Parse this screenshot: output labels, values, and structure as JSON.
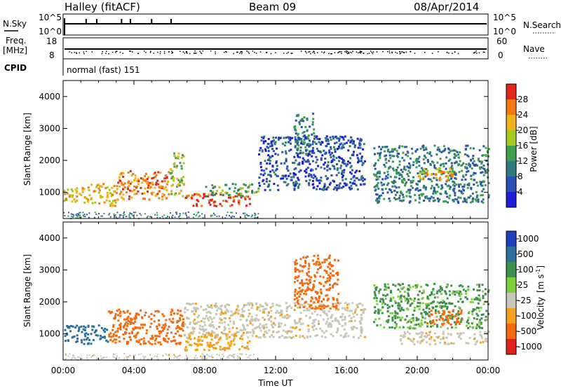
{
  "header": {
    "station": "Halley (fitACF)",
    "beam": "Beam 09",
    "date": "08/Apr/2014"
  },
  "top_panels": {
    "nsky_label": "N.Sky",
    "nsky_ticks": [
      "10^5",
      "10^0"
    ],
    "nsearch_label": "N.Search",
    "nsearch_ticks": [
      "10^5",
      "10^0"
    ],
    "freq_label_1": "Freq.",
    "freq_label_2": "[MHz]",
    "freq_ticks": [
      "18",
      "8"
    ],
    "nave_label": "Nave",
    "nave_ticks": [
      "60",
      "0"
    ],
    "cpid_label": "CPID",
    "cpid_value": "normal (fast) 151"
  },
  "chart_data": [
    {
      "type": "heatmap",
      "title": "",
      "xlabel": "",
      "ylabel": "Slant Range [km]",
      "x_ticks": [
        "00:00",
        "04:00",
        "08:00",
        "12:00",
        "16:00",
        "20:00",
        "00:00"
      ],
      "y_ticks": [
        1000,
        2000,
        3000,
        4000
      ],
      "xlim_hours": [
        0,
        24
      ],
      "ylim_km": [
        180,
        4500
      ],
      "colorbar_label": "Power [dB]",
      "colorbar_ticks": [
        4,
        8,
        12,
        16,
        20,
        24,
        28
      ],
      "colorbar_range": [
        0,
        32
      ],
      "colors": [
        "#1d1dd9",
        "#2a4fb5",
        "#2f7b7b",
        "#3f9f4f",
        "#a9c81e",
        "#f2b21a",
        "#f47a10",
        "#e2261a"
      ],
      "echo_regions": [
        {
          "t_start": 0.0,
          "t_end": 1.5,
          "r_start": 700,
          "r_end": 1200,
          "power_db": 22
        },
        {
          "t_start": 1.5,
          "t_end": 3.0,
          "r_start": 600,
          "r_end": 1300,
          "power_db": 20
        },
        {
          "t_start": 3.0,
          "t_end": 6.0,
          "r_start": 800,
          "r_end": 1700,
          "power_db": 26
        },
        {
          "t_start": 6.0,
          "t_end": 6.8,
          "r_start": 900,
          "r_end": 2300,
          "power_db": 18
        },
        {
          "t_start": 6.8,
          "t_end": 10.5,
          "r_start": 600,
          "r_end": 1000,
          "power_db": 28
        },
        {
          "t_start": 8.0,
          "t_end": 11.0,
          "r_start": 900,
          "r_end": 1300,
          "power_db": 14
        },
        {
          "t_start": 11.0,
          "t_end": 17.0,
          "r_start": 1100,
          "r_end": 2800,
          "power_db": 6
        },
        {
          "t_start": 13.0,
          "t_end": 14.2,
          "r_start": 2200,
          "r_end": 3500,
          "power_db": 10
        },
        {
          "t_start": 17.5,
          "t_end": 24.0,
          "r_start": 700,
          "r_end": 2500,
          "power_db": 10
        },
        {
          "t_start": 20.0,
          "t_end": 22.0,
          "r_start": 1400,
          "r_end": 1800,
          "power_db": 20
        }
      ]
    },
    {
      "type": "heatmap",
      "title": "",
      "xlabel": "Time UT",
      "ylabel": "Slant Range [km]",
      "x_ticks": [
        "00:00",
        "04:00",
        "08:00",
        "12:00",
        "16:00",
        "20:00",
        "00:00"
      ],
      "y_ticks": [
        1000,
        2000,
        3000,
        4000
      ],
      "xlim_hours": [
        0,
        24
      ],
      "ylim_km": [
        180,
        4500
      ],
      "colorbar_label": "Velocity",
      "colorbar_unit": "[m s",
      "colorbar_unit_sup": "-1",
      "colorbar_ticks": [
        "1000",
        "500",
        "100",
        "25",
        "-25",
        "-100",
        "-500",
        "-1000"
      ],
      "colors": [
        "#1f3fbf",
        "#2f6f9f",
        "#3f8f4f",
        "#7fcf3f",
        "#c8c8b8",
        "#f2a21a",
        "#f46a10",
        "#e2201a"
      ],
      "echo_regions": [
        {
          "t_start": 0.0,
          "t_end": 2.5,
          "r_start": 700,
          "r_end": 1300,
          "velocity": 300
        },
        {
          "t_start": 2.5,
          "t_end": 6.8,
          "r_start": 700,
          "r_end": 1800,
          "velocity": -150
        },
        {
          "t_start": 6.8,
          "t_end": 10.5,
          "r_start": 500,
          "r_end": 1100,
          "velocity": -80
        },
        {
          "t_start": 6.8,
          "t_end": 17.0,
          "r_start": 900,
          "r_end": 2000,
          "velocity": 0
        },
        {
          "t_start": 13.0,
          "t_end": 15.5,
          "r_start": 1800,
          "r_end": 3500,
          "velocity": -300
        },
        {
          "t_start": 17.5,
          "t_end": 24.0,
          "r_start": 1200,
          "r_end": 2600,
          "velocity": 80
        },
        {
          "t_start": 19.0,
          "t_end": 24.0,
          "r_start": 700,
          "r_end": 1100,
          "velocity": 0
        },
        {
          "t_start": 20.5,
          "t_end": 22.5,
          "r_start": 1300,
          "r_end": 1800,
          "velocity": -200
        }
      ]
    }
  ]
}
